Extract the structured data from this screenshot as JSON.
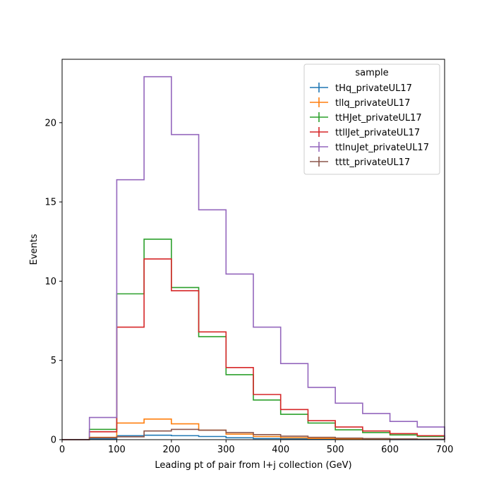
{
  "chart_data": {
    "type": "step",
    "xlabel": "Leading pt of pair from l+j collection (GeV)",
    "ylabel": "Events",
    "xlim": [
      0,
      700
    ],
    "ylim": [
      0,
      24
    ],
    "x_ticks": [
      0,
      100,
      200,
      300,
      400,
      500,
      600,
      700
    ],
    "y_ticks": [
      0,
      5,
      10,
      15,
      20
    ],
    "grid": false,
    "legend": {
      "title": "sample",
      "position": "top-right"
    },
    "bin_edges": [
      0,
      50,
      100,
      150,
      200,
      250,
      300,
      350,
      400,
      450,
      500,
      550,
      600,
      650,
      700
    ],
    "series": [
      {
        "name": "tHq_privateUL17",
        "color": "#1f77b4",
        "values": [
          0,
          0.05,
          0.25,
          0.28,
          0.25,
          0.2,
          0.12,
          0.07,
          0.05,
          0.03,
          0.02,
          0.02,
          0.01,
          0.01
        ]
      },
      {
        "name": "tllq_privateUL17",
        "color": "#ff7f0e",
        "values": [
          0,
          0.15,
          1.05,
          1.3,
          1.0,
          0.6,
          0.35,
          0.2,
          0.12,
          0.08,
          0.05,
          0.04,
          0.03,
          0.02
        ]
      },
      {
        "name": "ttHJet_privateUL17",
        "color": "#2ca02c",
        "values": [
          0,
          0.65,
          9.2,
          12.65,
          9.6,
          6.5,
          4.1,
          2.5,
          1.6,
          1.05,
          0.62,
          0.45,
          0.3,
          0.2
        ]
      },
      {
        "name": "ttllJet_privateUL17",
        "color": "#d62728",
        "values": [
          0,
          0.5,
          7.1,
          11.4,
          9.4,
          6.8,
          4.55,
          2.85,
          1.9,
          1.2,
          0.8,
          0.55,
          0.38,
          0.25
        ]
      },
      {
        "name": "ttlnuJet_privateUL17",
        "color": "#9467bd",
        "values": [
          0,
          1.4,
          16.4,
          22.9,
          19.25,
          14.5,
          10.45,
          7.1,
          4.8,
          3.3,
          2.3,
          1.65,
          1.15,
          0.8
        ]
      },
      {
        "name": "tttt_privateUL17",
        "color": "#8c564b",
        "values": [
          0,
          0.12,
          0.18,
          0.55,
          0.65,
          0.6,
          0.45,
          0.32,
          0.22,
          0.15,
          0.1,
          0.07,
          0.05,
          0.03
        ]
      }
    ]
  }
}
